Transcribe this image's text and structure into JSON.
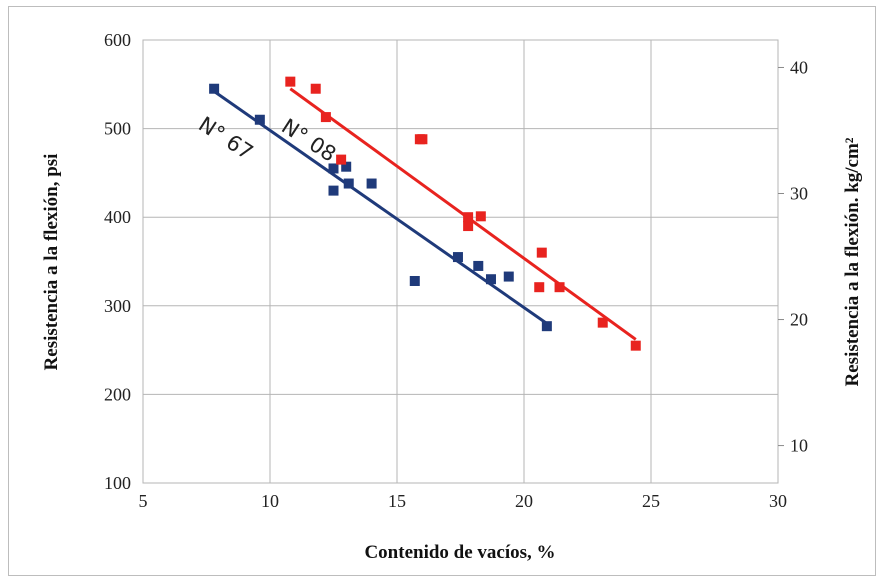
{
  "chart_data": {
    "type": "scatter",
    "xlabel": "Contenido de vacíos, %",
    "ylabel": "Resistencia a la flexión, psi",
    "y2label": "Resistencia a la flexión. kg/cm²",
    "xlim": [
      5,
      30
    ],
    "ylim": [
      100,
      600
    ],
    "y2lim": [
      7.03,
      42.18
    ],
    "x_ticks": [
      "5",
      "10",
      "15",
      "20",
      "25",
      "30"
    ],
    "y_ticks": [
      "100",
      "200",
      "300",
      "400",
      "500",
      "600"
    ],
    "y2_ticks": [
      "10",
      "20",
      "30",
      "40"
    ],
    "grid": true,
    "series": [
      {
        "name": "N° 67",
        "color": "#1f3a7a",
        "marker": "square",
        "points": [
          {
            "x": 7.8,
            "y": 545
          },
          {
            "x": 9.6,
            "y": 510
          },
          {
            "x": 12.5,
            "y": 430
          },
          {
            "x": 12.5,
            "y": 455
          },
          {
            "x": 13.0,
            "y": 457
          },
          {
            "x": 13.1,
            "y": 438
          },
          {
            "x": 14.0,
            "y": 438
          },
          {
            "x": 15.7,
            "y": 328
          },
          {
            "x": 17.4,
            "y": 355
          },
          {
            "x": 18.2,
            "y": 345
          },
          {
            "x": 18.7,
            "y": 330
          },
          {
            "x": 19.4,
            "y": 333
          },
          {
            "x": 20.9,
            "y": 277
          }
        ],
        "fit": {
          "x": [
            7.8,
            20.9
          ],
          "y": [
            542,
            280
          ]
        }
      },
      {
        "name": "N° 08",
        "color": "#e8231f",
        "marker": "square",
        "points": [
          {
            "x": 10.8,
            "y": 553
          },
          {
            "x": 11.8,
            "y": 545
          },
          {
            "x": 12.2,
            "y": 513
          },
          {
            "x": 12.8,
            "y": 465
          },
          {
            "x": 15.9,
            "y": 488
          },
          {
            "x": 16.0,
            "y": 488
          },
          {
            "x": 17.8,
            "y": 390
          },
          {
            "x": 17.8,
            "y": 400
          },
          {
            "x": 18.3,
            "y": 401
          },
          {
            "x": 20.6,
            "y": 321
          },
          {
            "x": 20.7,
            "y": 360
          },
          {
            "x": 21.4,
            "y": 321
          },
          {
            "x": 23.1,
            "y": 281
          },
          {
            "x": 24.4,
            "y": 255
          }
        ],
        "fit": {
          "x": [
            10.8,
            24.4
          ],
          "y": [
            545,
            262
          ]
        }
      }
    ]
  }
}
